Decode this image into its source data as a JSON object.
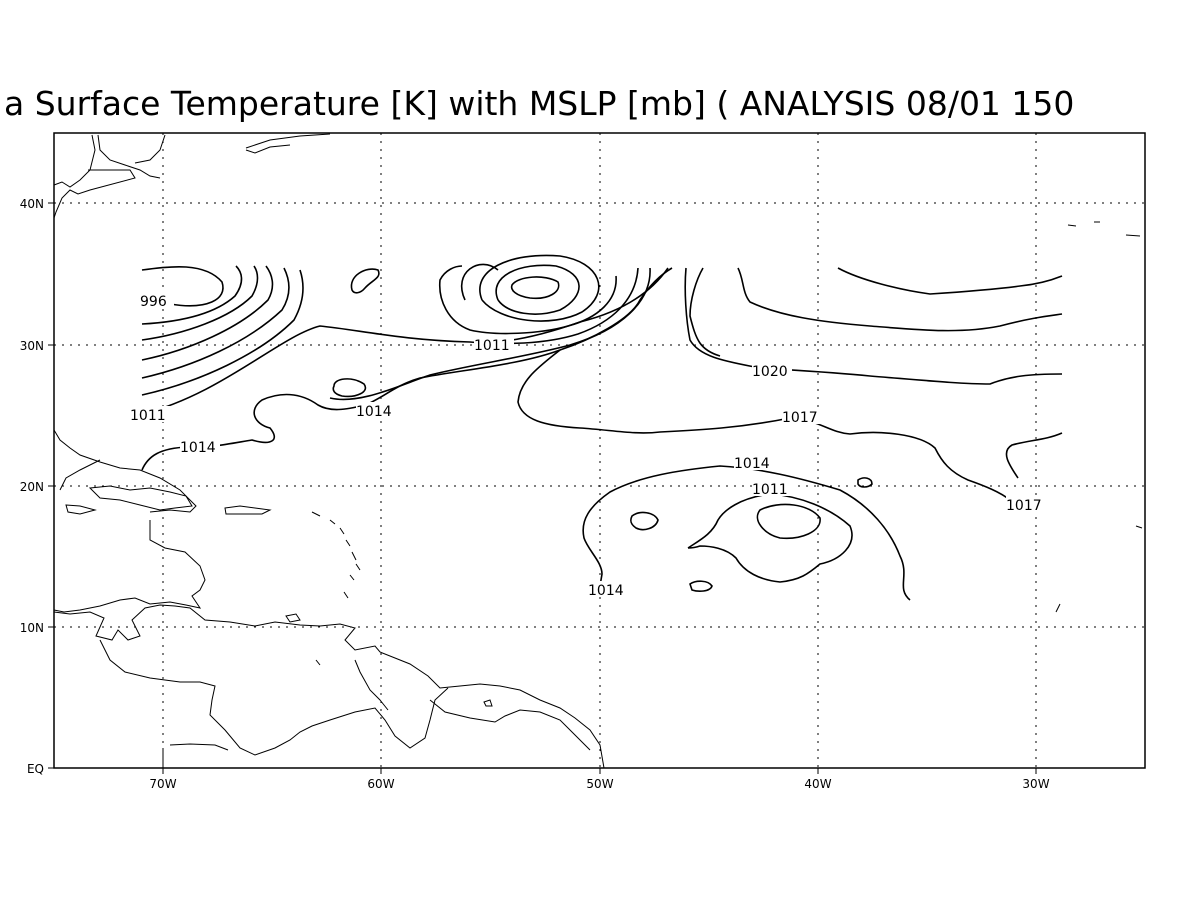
{
  "title": "a Surface Temperature [K] with MSLP [mb] ( ANALYSIS 08/01 150",
  "axes": {
    "lon_ticks": [
      "70W",
      "60W",
      "50W",
      "40W",
      "30W"
    ],
    "lat_ticks": [
      "40N",
      "30N",
      "20N",
      "10N",
      "EQ"
    ]
  },
  "contour_labels": [
    {
      "id": "996",
      "text": "996"
    },
    {
      "id": "1011-west",
      "text": "1011"
    },
    {
      "id": "1011-north",
      "text": "1011"
    },
    {
      "id": "1014-west",
      "text": "1014"
    },
    {
      "id": "1014-mid",
      "text": "1014"
    },
    {
      "id": "1020",
      "text": "1020"
    },
    {
      "id": "1017-mid",
      "text": "1017"
    },
    {
      "id": "1014-east",
      "text": "1014"
    },
    {
      "id": "1011-east",
      "text": "1011"
    },
    {
      "id": "1017-east",
      "text": "1017"
    },
    {
      "id": "1014-south",
      "text": "1014"
    }
  ],
  "colors": {
    "line": "#000000",
    "background": "#ffffff"
  }
}
